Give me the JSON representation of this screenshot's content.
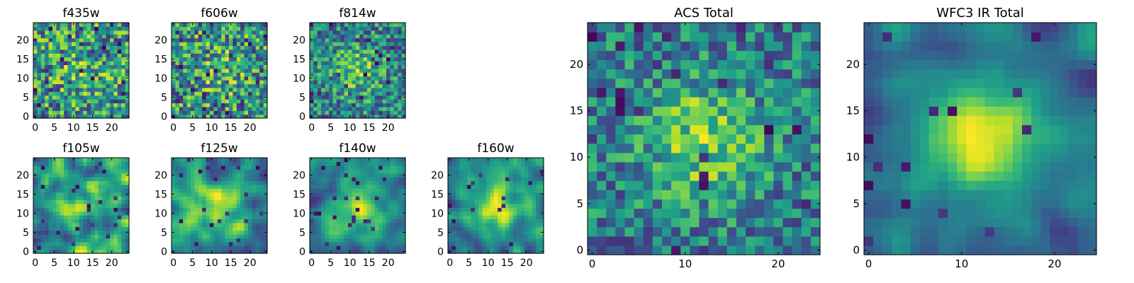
{
  "figure": {
    "panels": [
      {
        "id": "f435w",
        "title": "f435w",
        "xticks": [
          0,
          5,
          10,
          15,
          20
        ],
        "yticks": [
          0,
          5,
          10,
          15,
          20
        ]
      },
      {
        "id": "f606w",
        "title": "f606w",
        "xticks": [
          0,
          5,
          10,
          15,
          20
        ],
        "yticks": [
          0,
          5,
          10,
          15,
          20
        ]
      },
      {
        "id": "f814w",
        "title": "f814w",
        "xticks": [
          0,
          5,
          10,
          15,
          20
        ],
        "yticks": [
          0,
          5,
          10,
          15,
          20
        ]
      },
      {
        "id": "f105w",
        "title": "f105w",
        "xticks": [
          0,
          5,
          10,
          15,
          20
        ],
        "yticks": [
          0,
          5,
          10,
          15,
          20
        ]
      },
      {
        "id": "f125w",
        "title": "f125w",
        "xticks": [
          0,
          5,
          10,
          15,
          20
        ],
        "yticks": [
          0,
          5,
          10,
          15,
          20
        ]
      },
      {
        "id": "f140w",
        "title": "f140w",
        "xticks": [
          0,
          5,
          10,
          15,
          20
        ],
        "yticks": [
          0,
          5,
          10,
          15,
          20
        ]
      },
      {
        "id": "f160w",
        "title": "f160w",
        "xticks": [
          0,
          5,
          10,
          15,
          20
        ],
        "yticks": [
          0,
          5,
          10,
          15,
          20
        ]
      },
      {
        "id": "acs_total",
        "title": "ACS Total",
        "xticks": [
          0,
          10,
          20
        ],
        "yticks": [
          0,
          5,
          10,
          15,
          20
        ]
      },
      {
        "id": "wfc3_total",
        "title": "WFC3 IR Total",
        "xticks": [
          0,
          10,
          20
        ],
        "yticks": [
          0,
          5,
          10,
          15,
          20
        ]
      }
    ]
  },
  "chart_data": [
    {
      "type": "heatmap",
      "title": "f435w",
      "grid_size": 25,
      "xlim": [
        0,
        24
      ],
      "ylim": [
        0,
        24
      ],
      "colormap": "viridis",
      "smoothness": 0,
      "noise": 1.0,
      "center_peak": 0.15,
      "dark_pixels": 0.05,
      "seed": 11
    },
    {
      "type": "heatmap",
      "title": "f606w",
      "grid_size": 25,
      "xlim": [
        0,
        24
      ],
      "ylim": [
        0,
        24
      ],
      "colormap": "viridis",
      "smoothness": 0,
      "noise": 1.0,
      "center_peak": 0.2,
      "dark_pixels": 0.05,
      "seed": 23
    },
    {
      "type": "heatmap",
      "title": "f814w",
      "grid_size": 25,
      "xlim": [
        0,
        24
      ],
      "ylim": [
        0,
        24
      ],
      "colormap": "viridis",
      "smoothness": 0,
      "noise": 1.0,
      "center_peak": 0.45,
      "dark_pixels": 0.04,
      "seed": 37
    },
    {
      "type": "heatmap",
      "title": "f105w",
      "grid_size": 25,
      "xlim": [
        0,
        24
      ],
      "ylim": [
        0,
        24
      ],
      "colormap": "viridis",
      "smoothness": 2,
      "noise": 1.0,
      "center_peak": 0.35,
      "dark_pixels": 0.04,
      "seed": 41
    },
    {
      "type": "heatmap",
      "title": "f125w",
      "grid_size": 25,
      "xlim": [
        0,
        24
      ],
      "ylim": [
        0,
        24
      ],
      "colormap": "viridis",
      "smoothness": 2,
      "noise": 1.0,
      "center_peak": 0.5,
      "dark_pixels": 0.04,
      "seed": 53
    },
    {
      "type": "heatmap",
      "title": "f140w",
      "grid_size": 25,
      "xlim": [
        0,
        24
      ],
      "ylim": [
        0,
        24
      ],
      "colormap": "viridis",
      "smoothness": 2,
      "noise": 1.0,
      "center_peak": 0.7,
      "dark_pixels": 0.03,
      "seed": 67
    },
    {
      "type": "heatmap",
      "title": "f160w",
      "grid_size": 25,
      "xlim": [
        0,
        24
      ],
      "ylim": [
        0,
        24
      ],
      "colormap": "viridis",
      "smoothness": 2,
      "noise": 1.0,
      "center_peak": 0.9,
      "dark_pixels": 0.03,
      "seed": 79
    },
    {
      "type": "heatmap",
      "title": "ACS Total",
      "grid_size": 25,
      "xlim": [
        0,
        24
      ],
      "ylim": [
        0,
        24
      ],
      "colormap": "viridis",
      "smoothness": 0,
      "noise": 0.9,
      "center_peak": 0.6,
      "dark_pixels": 0.04,
      "seed": 97
    },
    {
      "type": "heatmap",
      "title": "WFC3 IR Total",
      "grid_size": 25,
      "xlim": [
        0,
        24
      ],
      "ylim": [
        0,
        24
      ],
      "colormap": "viridis",
      "smoothness": 2,
      "noise": 0.9,
      "center_peak": 1.2,
      "dark_pixels": 0.03,
      "seed": 113
    }
  ]
}
